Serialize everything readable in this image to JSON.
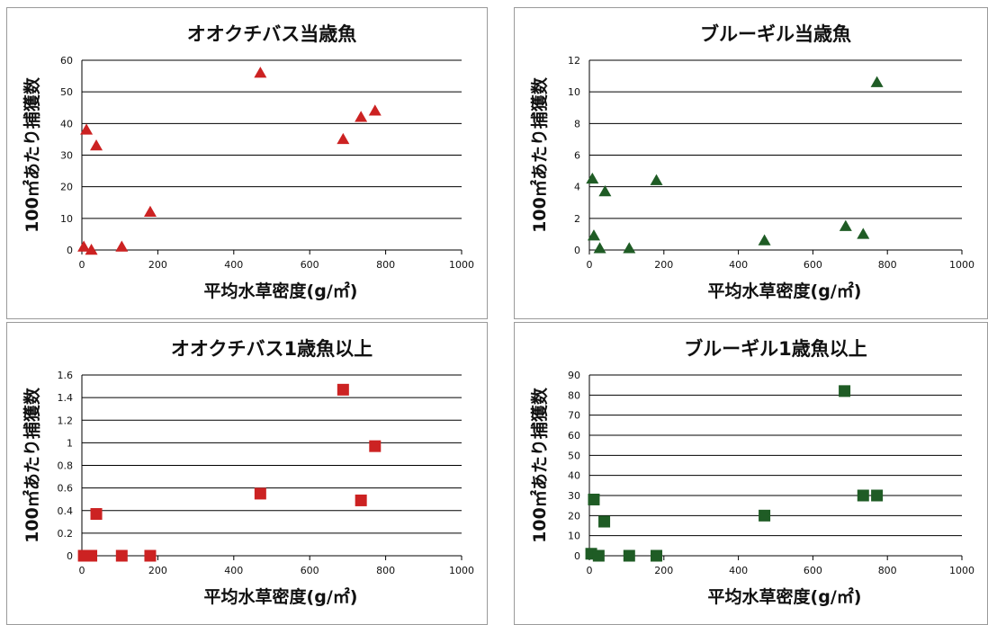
{
  "chart_data": [
    {
      "type": "scatter",
      "title": "オオクチバス当歳魚",
      "xlabel": "平均水草密度(g/㎡)",
      "ylabel": "100㎡あたり捕獲数",
      "xlim": [
        0,
        1000
      ],
      "ylim": [
        0,
        60
      ],
      "xticks": [
        0,
        200,
        400,
        600,
        800,
        1000
      ],
      "yticks": [
        0,
        10,
        20,
        30,
        40,
        50,
        60
      ],
      "ytick_labels": [
        "0",
        "10",
        "20",
        "30",
        "40",
        "50",
        "60"
      ],
      "grid": "horizontal",
      "marker": "triangle",
      "color": "#cc2222",
      "points": [
        {
          "x": 5,
          "y": 1
        },
        {
          "x": 12,
          "y": 38
        },
        {
          "x": 25,
          "y": 0
        },
        {
          "x": 38,
          "y": 33
        },
        {
          "x": 105,
          "y": 1
        },
        {
          "x": 180,
          "y": 12
        },
        {
          "x": 470,
          "y": 56
        },
        {
          "x": 688,
          "y": 35
        },
        {
          "x": 735,
          "y": 42
        },
        {
          "x": 772,
          "y": 44
        }
      ]
    },
    {
      "type": "scatter",
      "title": "ブルーギル当歳魚",
      "xlabel": "平均水草密度(g/㎡)",
      "ylabel": "100㎡あたり捕獲数",
      "xlim": [
        0,
        1000
      ],
      "ylim": [
        0,
        12
      ],
      "xticks": [
        0,
        200,
        400,
        600,
        800,
        1000
      ],
      "yticks": [
        0,
        2,
        4,
        6,
        8,
        10,
        12
      ],
      "ytick_labels": [
        "0",
        "2",
        "4",
        "6",
        "8",
        "10",
        "12"
      ],
      "grid": "horizontal",
      "marker": "triangle",
      "color": "#1f5c25",
      "points": [
        {
          "x": 8,
          "y": 4.5
        },
        {
          "x": 12,
          "y": 0.9
        },
        {
          "x": 28,
          "y": 0.1
        },
        {
          "x": 42,
          "y": 3.7
        },
        {
          "x": 107,
          "y": 0.1
        },
        {
          "x": 180,
          "y": 4.4
        },
        {
          "x": 470,
          "y": 0.6
        },
        {
          "x": 688,
          "y": 1.5
        },
        {
          "x": 735,
          "y": 1
        },
        {
          "x": 772,
          "y": 10.6
        }
      ]
    },
    {
      "type": "scatter",
      "title": "オオクチバス1歳魚以上",
      "xlabel": "平均水草密度(g/㎡)",
      "ylabel": "100㎡あたり捕獲数",
      "xlim": [
        0,
        1000
      ],
      "ylim": [
        0,
        1.6
      ],
      "xticks": [
        0,
        200,
        400,
        600,
        800,
        1000
      ],
      "yticks": [
        0,
        0.2,
        0.4,
        0.6,
        0.8,
        1,
        1.2,
        1.4,
        1.6
      ],
      "ytick_labels": [
        "0",
        "0.2",
        "0.4",
        "0.6",
        "0.8",
        "1",
        "1.2",
        "1.4",
        "1.6"
      ],
      "grid": "horizontal",
      "marker": "square",
      "color": "#cc2222",
      "points": [
        {
          "x": 5,
          "y": 0
        },
        {
          "x": 15,
          "y": 0
        },
        {
          "x": 25,
          "y": 0
        },
        {
          "x": 38,
          "y": 0.37
        },
        {
          "x": 105,
          "y": 0
        },
        {
          "x": 180,
          "y": 0
        },
        {
          "x": 470,
          "y": 0.55
        },
        {
          "x": 688,
          "y": 1.47
        },
        {
          "x": 735,
          "y": 0.49
        },
        {
          "x": 772,
          "y": 0.97
        }
      ]
    },
    {
      "type": "scatter",
      "title": "ブルーギル1歳魚以上",
      "xlabel": "平均水草密度(g/㎡)",
      "ylabel": "100㎡あたり捕獲数",
      "xlim": [
        0,
        1000
      ],
      "ylim": [
        0,
        90
      ],
      "xticks": [
        0,
        200,
        400,
        600,
        800,
        1000
      ],
      "yticks": [
        0,
        10,
        20,
        30,
        40,
        50,
        60,
        70,
        80,
        90
      ],
      "ytick_labels": [
        "0",
        "10",
        "20",
        "30",
        "40",
        "50",
        "60",
        "70",
        "80",
        "90"
      ],
      "grid": "horizontal",
      "marker": "square",
      "color": "#1f5c25",
      "points": [
        {
          "x": 5,
          "y": 1
        },
        {
          "x": 12,
          "y": 28
        },
        {
          "x": 25,
          "y": 0
        },
        {
          "x": 40,
          "y": 17
        },
        {
          "x": 107,
          "y": 0
        },
        {
          "x": 180,
          "y": 0
        },
        {
          "x": 470,
          "y": 20
        },
        {
          "x": 685,
          "y": 82
        },
        {
          "x": 735,
          "y": 30
        },
        {
          "x": 772,
          "y": 30
        }
      ]
    }
  ]
}
